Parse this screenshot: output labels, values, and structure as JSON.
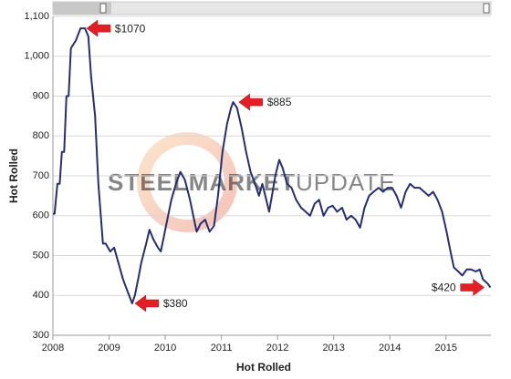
{
  "chart_data": {
    "type": "line",
    "xlabel": "Hot Rolled",
    "ylabel": "Hot Rolled",
    "watermark": [
      "STEEL",
      "MARKET",
      "UPDATE"
    ],
    "color": "#262f6e",
    "grid": true,
    "xlim": [
      2008,
      2015.8
    ],
    "xticks": [
      2008,
      2009,
      2010,
      2011,
      2012,
      2013,
      2014,
      2015
    ],
    "ylim": [
      300,
      1100
    ],
    "yticks": [
      300,
      400,
      500,
      600,
      700,
      800,
      900,
      {
        "value": 1000,
        "label": "1,000"
      },
      {
        "value": 1100,
        "label": "1,100"
      }
    ],
    "x": [
      2008.0,
      2008.03,
      2008.08,
      2008.12,
      2008.16,
      2008.2,
      2008.24,
      2008.28,
      2008.32,
      2008.41,
      2008.49,
      2008.57,
      2008.63,
      2008.68,
      2008.75,
      2008.81,
      2008.89,
      2008.94,
      2009.02,
      2009.09,
      2009.17,
      2009.25,
      2009.33,
      2009.41,
      2009.46,
      2009.53,
      2009.57,
      2009.66,
      2009.72,
      2009.79,
      2009.87,
      2009.92,
      2009.98,
      2010.05,
      2010.11,
      2010.19,
      2010.27,
      2010.35,
      2010.44,
      2010.5,
      2010.56,
      2010.63,
      2010.71,
      2010.79,
      2010.87,
      2010.94,
      2011.02,
      2011.1,
      2011.17,
      2011.21,
      2011.28,
      2011.36,
      2011.44,
      2011.52,
      2011.6,
      2011.67,
      2011.73,
      2011.8,
      2011.85,
      2011.9,
      2011.96,
      2012.03,
      2012.09,
      2012.17,
      2012.25,
      2012.33,
      2012.42,
      2012.5,
      2012.58,
      2012.66,
      2012.74,
      2012.82,
      2012.9,
      2012.98,
      2013.06,
      2013.15,
      2013.23,
      2013.31,
      2013.39,
      2013.47,
      2013.55,
      2013.63,
      2013.71,
      2013.8,
      2013.88,
      2013.96,
      2014.04,
      2014.12,
      2014.2,
      2014.28,
      2014.36,
      2014.44,
      2014.53,
      2014.61,
      2014.69,
      2014.77,
      2014.85,
      2014.93,
      2015.01,
      2015.08,
      2015.14,
      2015.22,
      2015.29,
      2015.37,
      2015.45,
      2015.53,
      2015.6,
      2015.66,
      2015.74,
      2015.79
    ],
    "values": [
      605,
      605,
      680,
      680,
      760,
      760,
      900,
      900,
      1020,
      1040,
      1070,
      1070,
      1050,
      950,
      850,
      680,
      530,
      530,
      510,
      520,
      480,
      440,
      410,
      380,
      400,
      450,
      480,
      530,
      565,
      540,
      520,
      510,
      550,
      600,
      640,
      680,
      710,
      690,
      640,
      600,
      560,
      580,
      590,
      560,
      575,
      650,
      760,
      830,
      870,
      885,
      870,
      820,
      760,
      710,
      680,
      650,
      680,
      640,
      610,
      650,
      700,
      740,
      720,
      680,
      670,
      640,
      620,
      610,
      600,
      630,
      640,
      600,
      620,
      625,
      610,
      620,
      590,
      600,
      590,
      570,
      620,
      650,
      660,
      670,
      660,
      670,
      670,
      650,
      620,
      660,
      680,
      670,
      670,
      660,
      650,
      660,
      640,
      610,
      560,
      510,
      470,
      460,
      450,
      465,
      465,
      460,
      465,
      440,
      430,
      420
    ],
    "annotations": [
      {
        "text": "$1070",
        "x": 2008.6,
        "y": 1070
      },
      {
        "text": "$885",
        "x": 2011.31,
        "y": 885
      },
      {
        "text": "$380",
        "x": 2009.46,
        "y": 380
      },
      {
        "text": "$420",
        "x": 2015.68,
        "y": 420
      }
    ]
  }
}
